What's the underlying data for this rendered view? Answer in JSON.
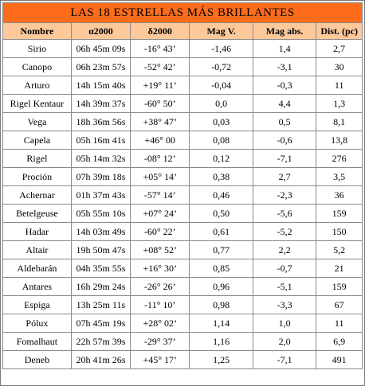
{
  "title": "LAS 18 ESTRELLAS MÁS BRILLANTES",
  "columns": [
    "Nombre",
    "α2000",
    "δ2000",
    "Mag V.",
    "Mag abs.",
    "Dist. (pc)"
  ],
  "colors": {
    "title_bg": "#fe6c1c",
    "header_bg": "#fdc99b",
    "border": "#8a8a8a"
  },
  "rows": [
    [
      "Sirio",
      "06h 45m 09s",
      "-16° 43’",
      "-1,46",
      "1,4",
      "2,7"
    ],
    [
      "Canopo",
      "06h 23m 57s",
      "-52° 42’",
      "-0,72",
      "-3,1",
      "30"
    ],
    [
      "Arturo",
      "14h 15m 40s",
      "+19° 11’",
      "-0,04",
      "-0,3",
      "11"
    ],
    [
      "Rigel Kentaur",
      "14h 39m 37s",
      "-60° 50’",
      "0,0",
      "4,4",
      "1,3"
    ],
    [
      "Vega",
      "18h 36m 56s",
      "+38° 47’",
      "0,03",
      "0,5",
      "8,1"
    ],
    [
      "Capela",
      "05h 16m 41s",
      "+46° 00",
      "0,08",
      "-0,6",
      "13,8"
    ],
    [
      "Rigel",
      "05h 14m 32s",
      "-08° 12’",
      "0,12",
      "-7,1",
      "276"
    ],
    [
      "Proción",
      "07h 39m 18s",
      "+05° 14’",
      "0,38",
      "2,7",
      "3,5"
    ],
    [
      "Achernar",
      "01h 37m 43s",
      "-57° 14’",
      "0,46",
      "-2,3",
      "36"
    ],
    [
      "Betelgeuse",
      "05h 55m 10s",
      "+07° 24’",
      "0,50",
      "-5,6",
      "159"
    ],
    [
      "Hadar",
      "14h 03m 49s",
      "-60° 22’",
      "0,61",
      "-5,2",
      "150"
    ],
    [
      "Altair",
      "19h 50m 47s",
      "+08° 52’",
      "0,77",
      "2,2",
      "5,2"
    ],
    [
      "Aldebarán",
      "04h 35m 55s",
      "+16° 30’",
      "0,85",
      "-0,7",
      "21"
    ],
    [
      "Antares",
      "16h 29m 24s",
      "-26° 26’",
      "0,96",
      "-5,1",
      "159"
    ],
    [
      "Espiga",
      "13h 25m 11s",
      "-11° 10’",
      "0,98",
      "-3,3",
      "67"
    ],
    [
      "Pólux",
      "07h 45m 19s",
      "+28° 02’",
      "1,14",
      "1,0",
      "11"
    ],
    [
      "Fomalhaut",
      "22h 57m 39s",
      "-29° 37’",
      "1,16",
      "2,0",
      "6,9"
    ],
    [
      "Deneb",
      "20h 41m 26s",
      "+45° 17’",
      "1,25",
      "-7,1",
      "491"
    ]
  ]
}
